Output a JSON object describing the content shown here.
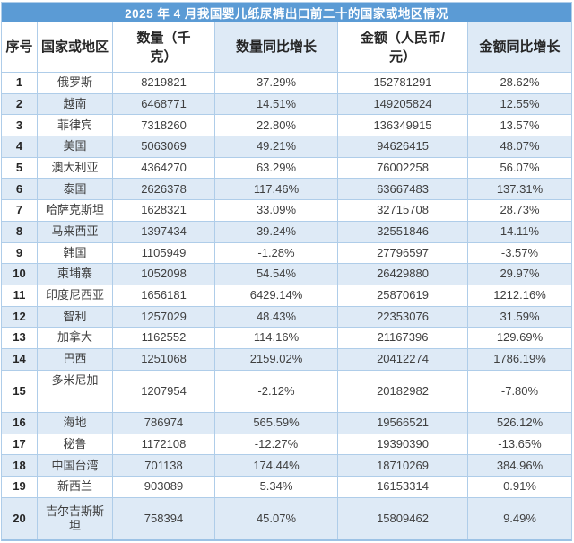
{
  "colors": {
    "title_bar": "#5B9BD5",
    "band_row": "#DEEAF6",
    "grid_line": "#AFCDE9",
    "bottom_edge": "#9CC2E5",
    "body_text": "#3F3F3F",
    "header_text": "#262626",
    "title_text": "#FFFFFF"
  },
  "chart_data": {
    "type": "table",
    "title": "2025 年 4 月我国婴儿纸尿裤出口前二十的国家或地区情况",
    "columns": [
      {
        "key": "rank",
        "label": "序号"
      },
      {
        "key": "country",
        "label": "国家或地区"
      },
      {
        "key": "quantity_kg",
        "label": "数量（千克）"
      },
      {
        "key": "quantity_yoy",
        "label": "数量同比增长"
      },
      {
        "key": "amount_cny",
        "label": "金额（人民币/元）"
      },
      {
        "key": "amount_yoy",
        "label": "金额同比增长"
      }
    ],
    "rows": [
      {
        "rank": "1",
        "country": "俄罗斯",
        "quantity_kg": "8219821",
        "quantity_yoy": "37.29%",
        "amount_cny": "152781291",
        "amount_yoy": "28.62%"
      },
      {
        "rank": "2",
        "country": "越南",
        "quantity_kg": "6468771",
        "quantity_yoy": "14.51%",
        "amount_cny": "149205824",
        "amount_yoy": "12.55%"
      },
      {
        "rank": "3",
        "country": "菲律宾",
        "quantity_kg": "7318260",
        "quantity_yoy": "22.80%",
        "amount_cny": "136349915",
        "amount_yoy": "13.57%"
      },
      {
        "rank": "4",
        "country": "美国",
        "quantity_kg": "5063069",
        "quantity_yoy": "49.21%",
        "amount_cny": "94626415",
        "amount_yoy": "48.07%"
      },
      {
        "rank": "5",
        "country": "澳大利亚",
        "quantity_kg": "4364270",
        "quantity_yoy": "63.29%",
        "amount_cny": "76002258",
        "amount_yoy": "56.07%"
      },
      {
        "rank": "6",
        "country": "泰国",
        "quantity_kg": "2626378",
        "quantity_yoy": "117.46%",
        "amount_cny": "63667483",
        "amount_yoy": "137.31%"
      },
      {
        "rank": "7",
        "country": "哈萨克斯坦",
        "quantity_kg": "1628321",
        "quantity_yoy": "33.09%",
        "amount_cny": "32715708",
        "amount_yoy": "28.73%"
      },
      {
        "rank": "8",
        "country": "马来西亚",
        "quantity_kg": "1397434",
        "quantity_yoy": "39.24%",
        "amount_cny": "32551846",
        "amount_yoy": "14.11%"
      },
      {
        "rank": "9",
        "country": "韩国",
        "quantity_kg": "1105949",
        "quantity_yoy": "-1.28%",
        "amount_cny": "27796597",
        "amount_yoy": "-3.57%"
      },
      {
        "rank": "10",
        "country": "柬埔寨",
        "quantity_kg": "1052098",
        "quantity_yoy": "54.54%",
        "amount_cny": "26429880",
        "amount_yoy": "29.97%"
      },
      {
        "rank": "11",
        "country": "印度尼西亚",
        "quantity_kg": "1656181",
        "quantity_yoy": "6429.14%",
        "amount_cny": "25870619",
        "amount_yoy": "1212.16%"
      },
      {
        "rank": "12",
        "country": "智利",
        "quantity_kg": "1257029",
        "quantity_yoy": "48.43%",
        "amount_cny": "22353076",
        "amount_yoy": "31.59%"
      },
      {
        "rank": "13",
        "country": "加拿大",
        "quantity_kg": "1162552",
        "quantity_yoy": "114.16%",
        "amount_cny": "21167396",
        "amount_yoy": "129.69%"
      },
      {
        "rank": "14",
        "country": "巴西",
        "quantity_kg": "1251068",
        "quantity_yoy": "2159.02%",
        "amount_cny": "20412274",
        "amount_yoy": "1786.19%"
      },
      {
        "rank": "15",
        "country": "多米尼加",
        "quantity_kg": "1207954",
        "quantity_yoy": "-2.12%",
        "amount_cny": "20182982",
        "amount_yoy": "-7.80%"
      },
      {
        "rank": "16",
        "country": "海地",
        "quantity_kg": "786974",
        "quantity_yoy": "565.59%",
        "amount_cny": "19566521",
        "amount_yoy": "526.12%"
      },
      {
        "rank": "17",
        "country": "秘鲁",
        "quantity_kg": "1172108",
        "quantity_yoy": "-12.27%",
        "amount_cny": "19390390",
        "amount_yoy": "-13.65%"
      },
      {
        "rank": "18",
        "country": "中国台湾",
        "quantity_kg": "701138",
        "quantity_yoy": "174.44%",
        "amount_cny": "18710269",
        "amount_yoy": "384.96%"
      },
      {
        "rank": "19",
        "country": "新西兰",
        "quantity_kg": "903089",
        "quantity_yoy": "5.34%",
        "amount_cny": "16153314",
        "amount_yoy": "0.91%"
      },
      {
        "rank": "20",
        "country": "吉尔吉斯斯坦",
        "quantity_kg": "758394",
        "quantity_yoy": "45.07%",
        "amount_cny": "15809462",
        "amount_yoy": "9.49%"
      }
    ]
  }
}
